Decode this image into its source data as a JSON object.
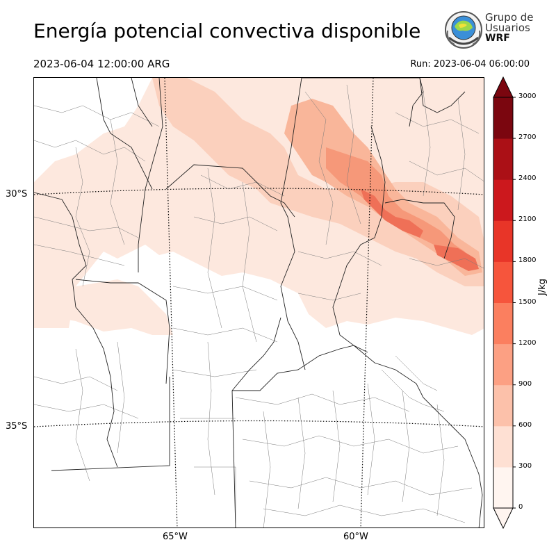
{
  "title": "Energía potencial convectiva disponible",
  "valid_time": "2023-06-04 12:00:00 ARG",
  "run_time": "Run: 2023-06-04 06:00:00",
  "logo": {
    "line1": "Grupo de",
    "line2": "Usuarios",
    "line3": "WRF"
  },
  "lat_labels": [
    "30°S",
    "35°S"
  ],
  "lon_labels": [
    "65°W",
    "60°W"
  ],
  "colorbar": {
    "unit": "J/kg",
    "ticks": [
      "3000",
      "2700",
      "2400",
      "2100",
      "1800",
      "1500",
      "1200",
      "900",
      "600",
      "300",
      "0"
    ],
    "colors": [
      "#fff5f0",
      "#fee0d3",
      "#fcc1aa",
      "#fca083",
      "#fb7f5f",
      "#f6553c",
      "#e83528",
      "#cc181d",
      "#ab1016",
      "#7b060f"
    ],
    "extend": "both"
  },
  "colors": {
    "level1": "#fde8de",
    "level2": "#fbd0bd",
    "level3": "#f9b69a",
    "level4": "#f69879",
    "level5": "#ef7057"
  }
}
